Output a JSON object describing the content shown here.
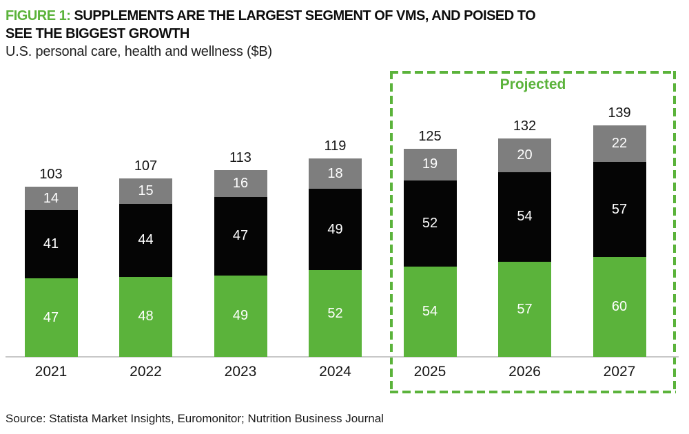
{
  "header": {
    "figure_label": "FIGURE 1:",
    "title_rest": "SUPPLEMENTS ARE THE LARGEST SEGMENT OF VMS, AND POISED TO SEE THE BIGGEST GROWTH",
    "subtitle": "U.S. personal care, health and wellness ($B)"
  },
  "chart_data": {
    "type": "bar",
    "stacked": true,
    "title": "U.S. personal care, health and wellness ($B)",
    "xlabel": "",
    "ylabel": "$B",
    "grid": false,
    "legend_position": "none",
    "value_labels": "white-inside-segments",
    "categories": [
      "2021",
      "2022",
      "2023",
      "2024",
      "2025",
      "2026",
      "2027"
    ],
    "series": [
      {
        "name": "green",
        "color": "#5BB33B",
        "values": [
          47,
          48,
          49,
          52,
          54,
          57,
          60
        ]
      },
      {
        "name": "black",
        "color": "#050505",
        "values": [
          41,
          44,
          47,
          49,
          52,
          54,
          57
        ]
      },
      {
        "name": "gray",
        "color": "#7E7E7E",
        "values": [
          14,
          15,
          16,
          18,
          19,
          20,
          22
        ]
      }
    ],
    "totals": [
      103,
      107,
      113,
      119,
      125,
      132,
      139
    ],
    "projected": {
      "label": "Projected",
      "categories": [
        "2025",
        "2026",
        "2027"
      ]
    }
  },
  "footer": {
    "source": "Source: Statista Market Insights, Euromonitor; Nutrition Business Journal"
  },
  "colors": {
    "accent_green": "#5BB33B",
    "bar_black": "#050505",
    "bar_gray": "#7E7E7E",
    "axis_line": "#C8C8C8",
    "value_label": "#FFFFFF",
    "text": "#141414"
  }
}
